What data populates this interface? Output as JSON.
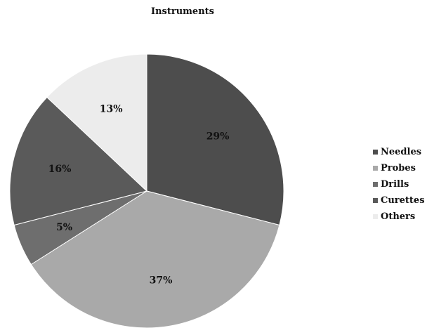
{
  "chart_data": {
    "type": "pie",
    "title": "Instruments",
    "slices": [
      {
        "name": "Needles",
        "value": 29,
        "label": "29%",
        "color": "#4d4d4d"
      },
      {
        "name": "Probes",
        "value": 37,
        "label": "37%",
        "color": "#a9a9a9"
      },
      {
        "name": "Drills",
        "value": 5,
        "label": "5%",
        "color": "#6e6e6e"
      },
      {
        "name": "Curettes",
        "value": 16,
        "label": "16%",
        "color": "#5a5a5a"
      },
      {
        "name": "Others",
        "value": 13,
        "label": "13%",
        "color": "#ececec"
      }
    ],
    "start_angle_deg": 0,
    "direction": "clockwise",
    "legend_position": "right"
  }
}
